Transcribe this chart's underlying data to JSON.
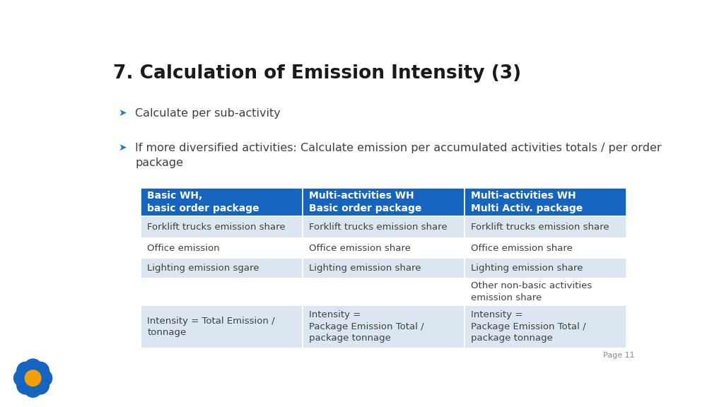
{
  "title": "7. Calculation of Emission Intensity (3)",
  "title_fontsize": 19,
  "title_color": "#1a1a1a",
  "bullet1": "Calculate per sub-activity",
  "bullet2": "If more diversified activities: Calculate emission per accumulated activities totals / per order\npackage",
  "bullet_fontsize": 11.5,
  "bullet_color": "#404040",
  "arrow_color": "#1e7bc0",
  "background_color": "#ffffff",
  "table_header_bg": "#1565c0",
  "table_header_text": "#ffffff",
  "table_row_bg_alt1": "#dce6f1",
  "table_row_bg_alt2": "#eef2fa",
  "table_row_bg_white": "#ffffff",
  "table_text_color": "#404040",
  "table_header_fontsize": 10,
  "table_cell_fontsize": 9.5,
  "col_headers": [
    "Basic WH,\nbasic order package",
    "Multi-activities WH\nBasic order package",
    "Multi-activities WH\nMulti Activ. package"
  ],
  "rows": [
    [
      "Forklift trucks emission share",
      "Forklift trucks emission share",
      "Forklift trucks emission share"
    ],
    [
      "Office emission",
      "Office emission share",
      "Office emission share"
    ],
    [
      "Lighting emission sgare",
      "Lighting emission share",
      "Lighting emission share"
    ],
    [
      "",
      "",
      "Other non-basic activities\nemission share"
    ],
    [
      "Intensity = Total Emission /\ntonnage",
      "Intensity =\nPackage Emission Total /\npackage tonnage",
      "Intensity =\nPackage Emission Total /\npackage tonnage"
    ]
  ],
  "row_bgs": [
    "#dce6f1",
    "#ffffff",
    "#dce6f1",
    "#ffffff",
    "#dce6f1"
  ],
  "page_label": "Page 11",
  "logo_petal_color": "#1565c0",
  "logo_center_color": "#f5a000"
}
